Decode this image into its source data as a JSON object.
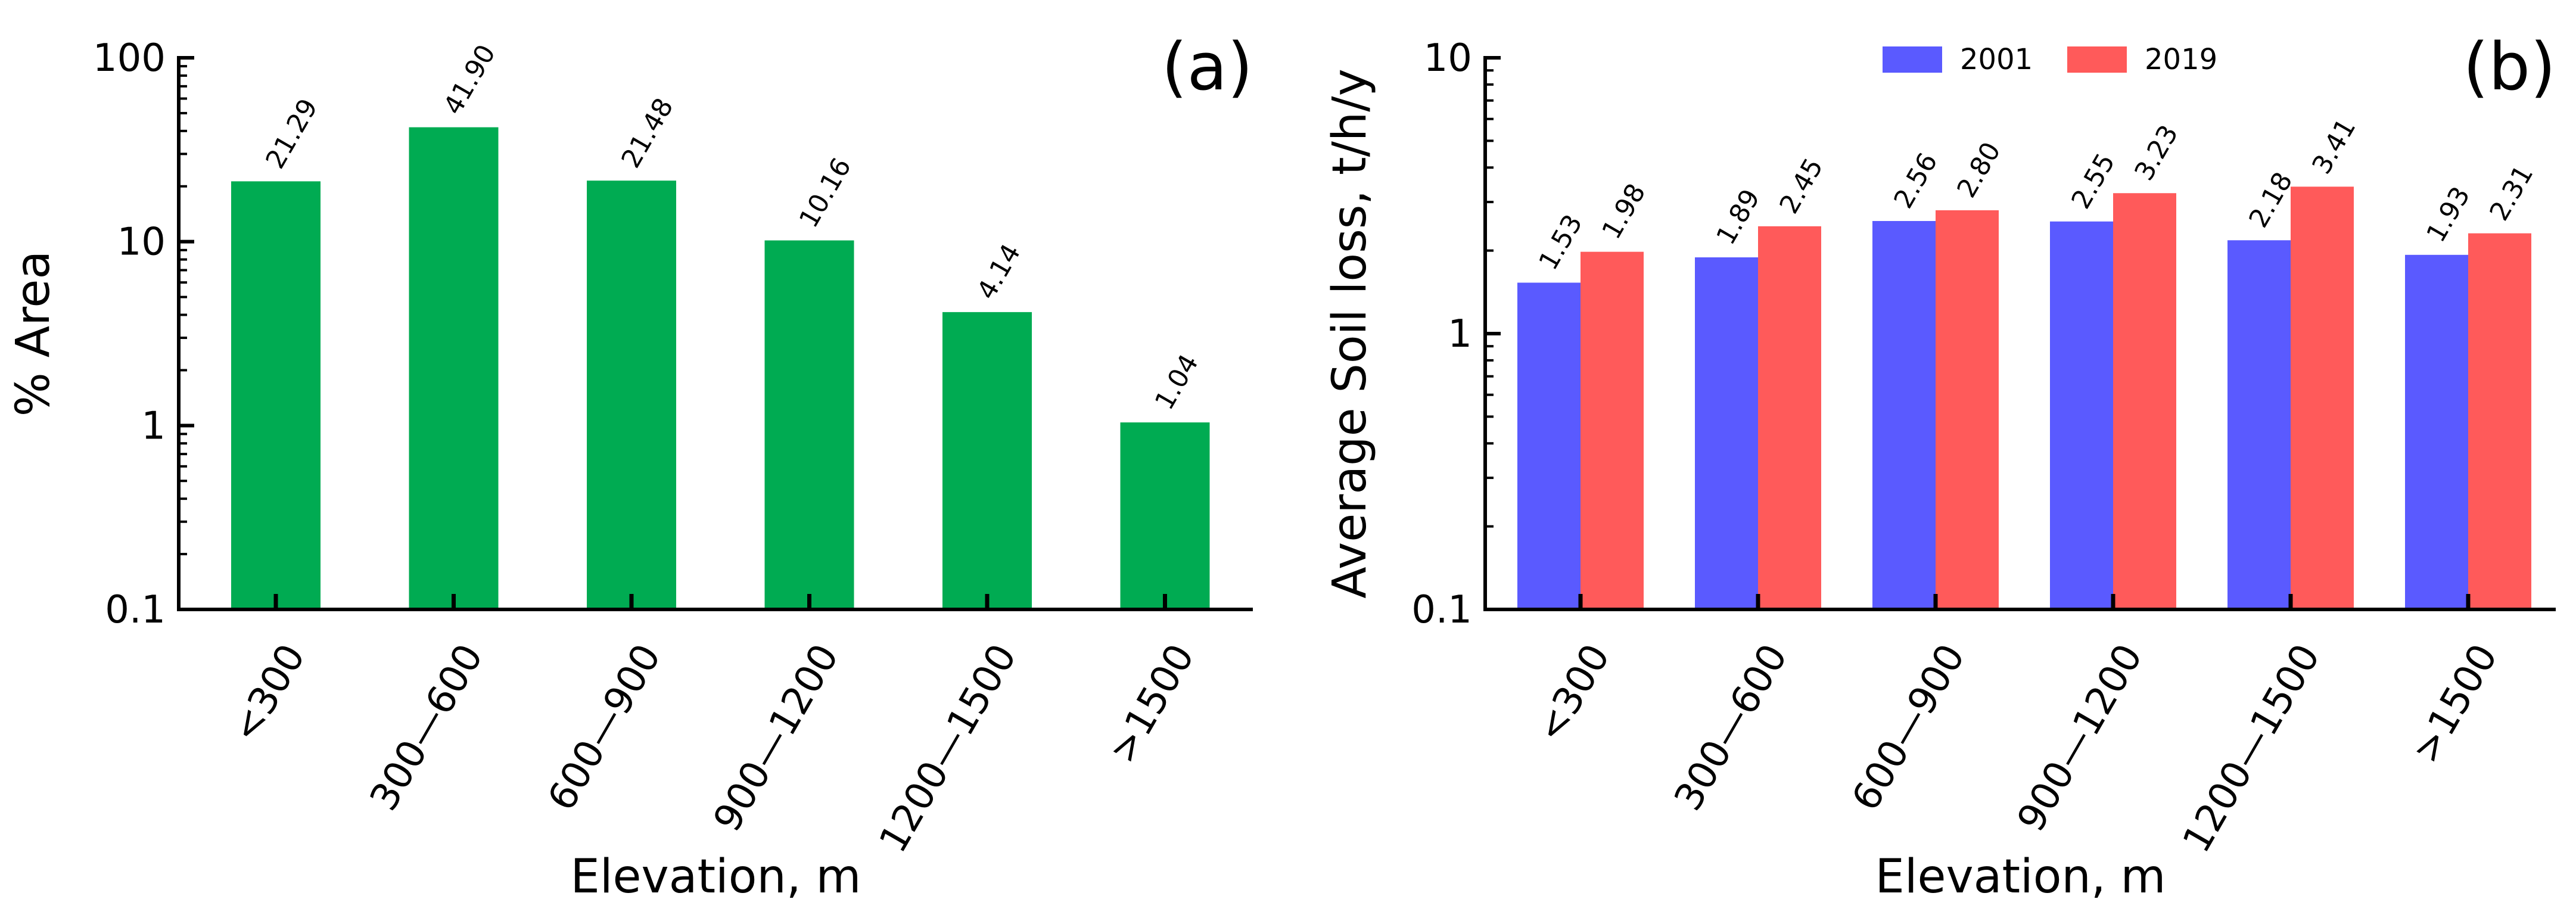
{
  "chart_data": [
    {
      "type": "bar",
      "panel": "(a)",
      "scale": "log",
      "title": "",
      "xlabel": "Elevation, m",
      "ylabel": "% Area",
      "ylim": [
        0.1,
        100
      ],
      "yticks": [
        0.1,
        1,
        10,
        100
      ],
      "ytick_labels": [
        "0.1",
        "1",
        "10",
        "100"
      ],
      "categories": [
        "<300",
        "300—600",
        "600—900",
        "900—1200",
        "1200—1500",
        ">1500"
      ],
      "series": [
        {
          "name": "% Area",
          "color": "#00AB52",
          "values": [
            21.29,
            41.9,
            21.48,
            10.16,
            4.14,
            1.04
          ],
          "labels": [
            "21.29",
            "41.90",
            "21.48",
            "10.16",
            "4.14",
            "1.04"
          ]
        }
      ],
      "legend": null
    },
    {
      "type": "bar",
      "panel": "(b)",
      "scale": "log",
      "title": "",
      "xlabel": "Elevation, m",
      "ylabel": "Average Soil loss, t/h/y",
      "ylim": [
        0.1,
        10
      ],
      "yticks": [
        0.1,
        1,
        10
      ],
      "ytick_labels": [
        "0.1",
        "1",
        "10"
      ],
      "categories": [
        "<300",
        "300—600",
        "600—900",
        "900—1200",
        "1200—1500",
        ">1500"
      ],
      "series": [
        {
          "name": "2001",
          "color": "#5A5AFF",
          "values": [
            1.53,
            1.89,
            2.56,
            2.55,
            2.18,
            1.93
          ],
          "labels": [
            "1.53",
            "1.89",
            "2.56",
            "2.55",
            "2.18",
            "1.93"
          ]
        },
        {
          "name": "2019",
          "color": "#FF5A5A",
          "values": [
            1.98,
            2.45,
            2.8,
            3.23,
            3.41,
            2.31
          ],
          "labels": [
            "1.98",
            "2.45",
            "2.80",
            "3.23",
            "3.41",
            "2.31"
          ]
        }
      ],
      "legend": "top-center"
    }
  ]
}
